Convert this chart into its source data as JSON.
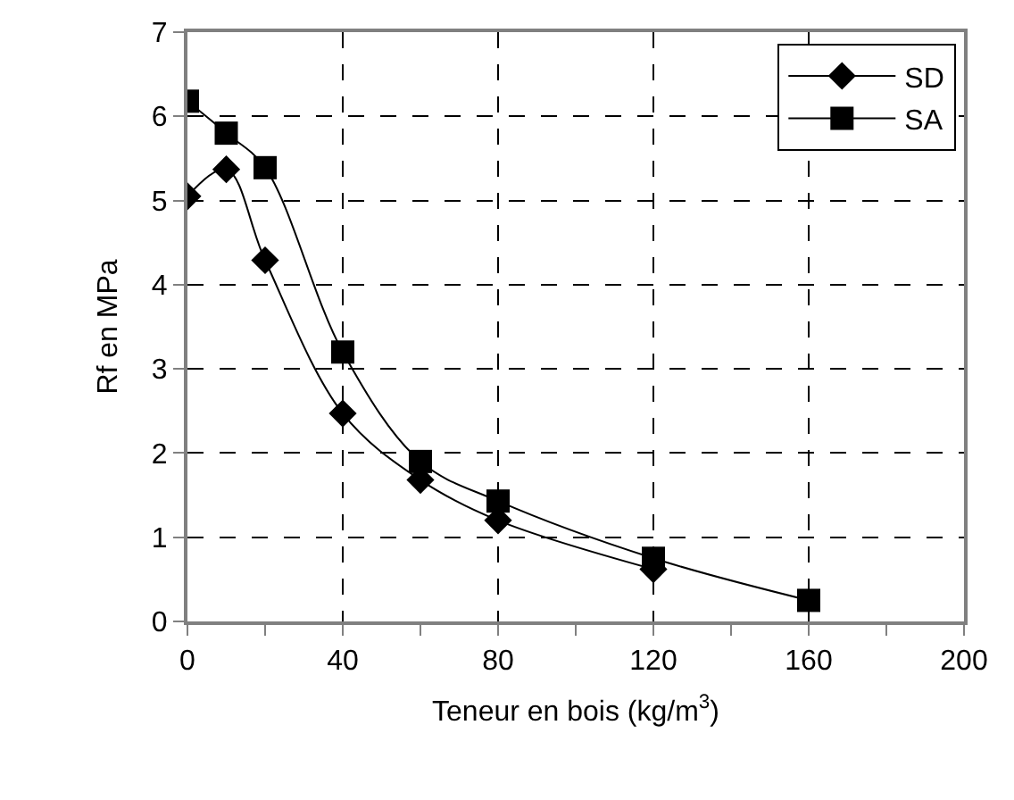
{
  "chart_data": {
    "type": "line",
    "xlabel": "Teneur en bois (kg/m$^{3}$)",
    "ylabel": "Rf en MPa",
    "x": [
      0,
      10,
      20,
      40,
      60,
      80,
      120,
      160
    ],
    "series": [
      {
        "name": "SD",
        "color": "#000000",
        "marker": "diamond",
        "values": [
          5.05,
          5.37,
          4.29,
          2.47,
          1.68,
          1.2,
          0.62,
          null
        ]
      },
      {
        "name": "SA",
        "color": "#000000",
        "marker": "square",
        "values": [
          6.18,
          5.8,
          5.39,
          3.2,
          1.9,
          1.43,
          0.75,
          0.25
        ]
      }
    ],
    "xlim": [
      0,
      200
    ],
    "xticks": [
      0,
      {
        "value": 20,
        "label": null
      },
      40,
      {
        "value": 60,
        "label": null
      },
      80,
      {
        "value": 100,
        "label": null
      },
      120,
      {
        "value": 140,
        "label": null
      },
      160,
      {
        "value": 180,
        "label": null
      },
      200
    ],
    "ylim": [
      0,
      7
    ],
    "yticks": [
      0,
      1,
      2,
      3,
      4,
      5,
      6,
      7
    ],
    "grid": true,
    "line_style": "solid",
    "legend": "top right"
  }
}
